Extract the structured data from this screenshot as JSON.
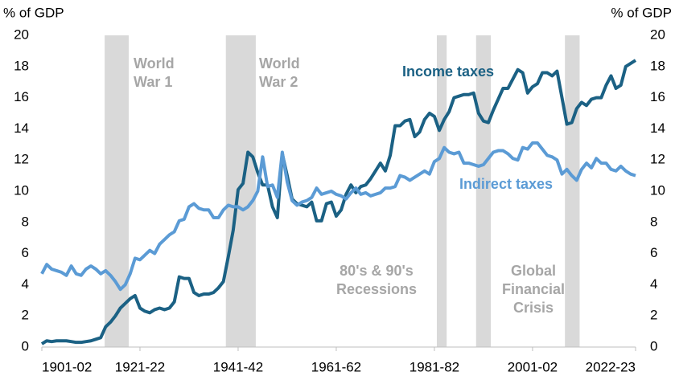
{
  "chart_data": {
    "type": "line",
    "y_label": "% of GDP",
    "y2_label": "% of GDP",
    "x": [
      1901,
      1902,
      1903,
      1904,
      1905,
      1906,
      1907,
      1908,
      1909,
      1910,
      1911,
      1912,
      1913,
      1914,
      1915,
      1916,
      1917,
      1918,
      1919,
      1920,
      1921,
      1922,
      1923,
      1924,
      1925,
      1926,
      1927,
      1928,
      1929,
      1930,
      1931,
      1932,
      1933,
      1934,
      1935,
      1936,
      1937,
      1938,
      1939,
      1940,
      1941,
      1942,
      1943,
      1944,
      1945,
      1946,
      1947,
      1948,
      1949,
      1950,
      1951,
      1952,
      1953,
      1954,
      1955,
      1956,
      1957,
      1958,
      1959,
      1960,
      1961,
      1962,
      1963,
      1964,
      1965,
      1966,
      1967,
      1968,
      1969,
      1970,
      1971,
      1972,
      1973,
      1974,
      1975,
      1976,
      1977,
      1978,
      1979,
      1980,
      1981,
      1982,
      1983,
      1984,
      1985,
      1986,
      1987,
      1988,
      1989,
      1990,
      1991,
      1992,
      1993,
      1994,
      1995,
      1996,
      1997,
      1998,
      1999,
      2000,
      2001,
      2002,
      2003,
      2004,
      2005,
      2006,
      2007,
      2008,
      2009,
      2010,
      2011,
      2012,
      2013,
      2014,
      2015,
      2016,
      2017,
      2018,
      2019,
      2020,
      2021,
      2022
    ],
    "series": [
      {
        "name": "Income taxes",
        "color": "#1b6184",
        "values": [
          0.2,
          0.4,
          0.35,
          0.4,
          0.4,
          0.4,
          0.35,
          0.3,
          0.3,
          0.35,
          0.4,
          0.5,
          0.6,
          1.3,
          1.6,
          2.0,
          2.5,
          2.8,
          3.1,
          3.3,
          2.5,
          2.3,
          2.2,
          2.4,
          2.5,
          2.4,
          2.5,
          2.9,
          4.5,
          4.4,
          4.4,
          3.5,
          3.3,
          3.4,
          3.4,
          3.5,
          3.8,
          4.2,
          5.8,
          7.5,
          10.1,
          10.5,
          12.5,
          12.2,
          11.2,
          10.4,
          10.4,
          9.0,
          8.3,
          12.4,
          11.0,
          9.5,
          9.2,
          9.1,
          9.0,
          9.3,
          8.1,
          8.1,
          9.2,
          9.3,
          8.4,
          8.8,
          9.8,
          10.4,
          9.9,
          10.3,
          10.4,
          10.8,
          11.3,
          11.8,
          11.3,
          12.3,
          14.2,
          14.2,
          14.5,
          14.6,
          13.5,
          13.8,
          14.6,
          15.0,
          14.8,
          13.9,
          14.6,
          15.1,
          16.0,
          16.1,
          16.2,
          16.2,
          16.3,
          15.0,
          14.5,
          14.4,
          15.2,
          15.9,
          16.6,
          16.6,
          17.2,
          17.8,
          17.6,
          16.3,
          16.7,
          16.9,
          17.6,
          17.6,
          17.4,
          17.7,
          16.0,
          14.3,
          14.4,
          15.3,
          15.7,
          15.5,
          15.9,
          16.0,
          16.0,
          16.8,
          17.4,
          16.6,
          16.8,
          18.0,
          18.2,
          18.4
        ]
      },
      {
        "name": "Indirect taxes",
        "color": "#5b9bd5",
        "values": [
          4.7,
          5.3,
          5.0,
          4.9,
          4.8,
          4.6,
          5.2,
          4.7,
          4.6,
          5.0,
          5.2,
          5.0,
          4.7,
          4.9,
          4.6,
          4.2,
          3.7,
          4.0,
          4.7,
          5.7,
          5.6,
          5.9,
          6.2,
          6.0,
          6.6,
          6.9,
          7.2,
          7.4,
          8.1,
          8.2,
          9.0,
          9.2,
          8.9,
          8.8,
          8.8,
          8.3,
          8.3,
          8.8,
          9.1,
          9.0,
          9.0,
          8.8,
          9.0,
          9.4,
          10.0,
          12.2,
          10.3,
          10.4,
          9.6,
          12.5,
          10.6,
          9.4,
          9.1,
          9.3,
          9.4,
          9.6,
          10.2,
          9.8,
          9.9,
          10.0,
          9.8,
          9.7,
          9.5,
          9.9,
          10.2,
          9.8,
          9.9,
          9.7,
          9.8,
          9.9,
          10.2,
          10.2,
          10.3,
          11.0,
          10.9,
          10.7,
          10.9,
          11.1,
          11.3,
          11.1,
          11.9,
          12.1,
          12.8,
          12.5,
          12.4,
          12.5,
          11.8,
          11.8,
          11.7,
          11.6,
          11.7,
          12.1,
          12.5,
          12.6,
          12.6,
          12.4,
          12.1,
          12.0,
          12.8,
          12.7,
          13.1,
          13.1,
          12.7,
          12.3,
          12.2,
          12.0,
          11.1,
          11.4,
          11.0,
          10.7,
          11.4,
          11.8,
          11.5,
          12.1,
          11.8,
          11.8,
          11.4,
          11.3,
          11.6,
          11.3,
          11.1,
          11.0
        ]
      }
    ],
    "xlim": [
      1901,
      2022
    ],
    "xticks": [
      {
        "value": 1901,
        "label": "1901-02"
      },
      {
        "value": 1921,
        "label": "1921-22"
      },
      {
        "value": 1941,
        "label": "1941-42"
      },
      {
        "value": 1961,
        "label": "1961-62"
      },
      {
        "value": 1981,
        "label": "1981-82"
      },
      {
        "value": 2001,
        "label": "2001-02"
      },
      {
        "value": 2022,
        "label": "2022-23"
      }
    ],
    "ylim": [
      0,
      20
    ],
    "yticks": [
      0,
      2,
      4,
      6,
      8,
      10,
      12,
      14,
      16,
      18,
      20
    ],
    "y2lim": [
      0,
      20
    ],
    "y2ticks": [
      0,
      2,
      4,
      6,
      8,
      10,
      12,
      14,
      16,
      18,
      20
    ],
    "bands": [
      {
        "start": 1913.8,
        "end": 1918.7
      },
      {
        "start": 1938.5,
        "end": 1944.6
      },
      {
        "start": 1981.5,
        "end": 1983.5
      },
      {
        "start": 1989.5,
        "end": 1992.5
      },
      {
        "start": 2007.6,
        "end": 2010.6
      }
    ],
    "band_color": "#d9d9d9",
    "annotations": [
      {
        "lines": [
          "World",
          "War 1"
        ]
      },
      {
        "lines": [
          "World",
          "War 2"
        ]
      },
      {
        "lines": [
          "80's & 90's",
          "Recessions"
        ]
      },
      {
        "lines": [
          "Global",
          "Financial",
          "Crisis"
        ]
      }
    ]
  }
}
